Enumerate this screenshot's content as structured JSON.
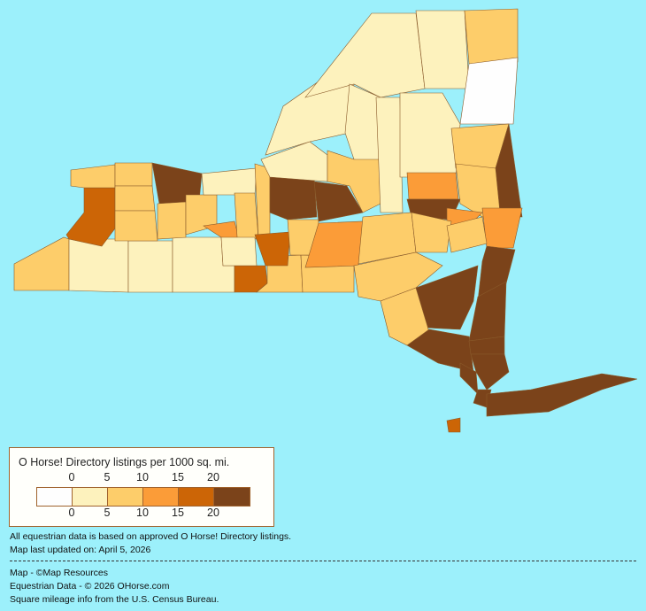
{
  "legend": {
    "title": "O Horse! Directory listings per 1000 sq. mi.",
    "top_labels": [
      "0",
      "5",
      "10",
      "15",
      "20"
    ],
    "bottom_labels": [
      "0",
      "5",
      "10",
      "15",
      "20"
    ],
    "colors": [
      "#fefefe",
      "#fdf2bd",
      "#fdcd6a",
      "#fb9c38",
      "#cc6506",
      "#7b431a"
    ]
  },
  "map": {
    "background": "#9cf0fb",
    "county_categories": [
      2,
      1,
      1,
      1,
      4,
      2,
      2,
      4,
      2,
      2,
      2,
      2,
      5,
      2,
      2,
      1,
      3,
      2,
      2,
      1,
      4,
      5,
      2,
      1,
      5,
      3,
      1,
      1,
      1,
      2,
      1,
      1,
      2,
      0,
      1,
      2,
      5,
      2,
      3,
      5,
      3,
      2,
      2,
      3,
      2,
      2,
      5,
      5,
      5,
      2,
      5,
      5,
      5,
      5,
      5,
      5,
      4
    ]
  },
  "notes": {
    "line1": "All equestrian data is based on approved O Horse! Directory listings.",
    "line2": "Map last updated on: April 5, 2026",
    "credit1": "Map - ©Map Resources",
    "credit2": "Equestrian Data - © 2026 OHorse.com",
    "credit3": "Square mileage info from the U.S. Census Bureau."
  }
}
